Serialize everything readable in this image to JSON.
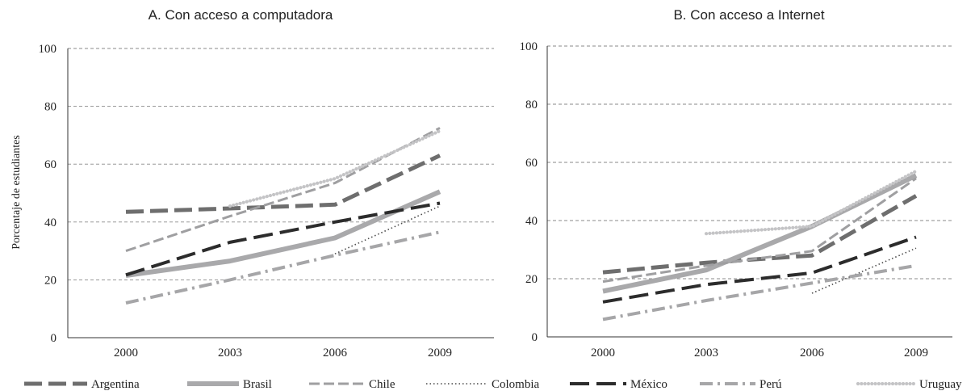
{
  "chart_data": [
    {
      "type": "line",
      "title": "A. Con acceso a computadora",
      "xlabel": "",
      "ylabel": "Porcentaje de estudiantes",
      "ylim": [
        0,
        100
      ],
      "yticks": [
        0,
        20,
        40,
        60,
        80,
        100
      ],
      "grid": true,
      "legend": "bottom",
      "categories": [
        "2000",
        "2003",
        "2006",
        "2009"
      ],
      "series": [
        {
          "name": "Argentina",
          "values": [
            43.5,
            44.7,
            46,
            63
          ]
        },
        {
          "name": "Brasil",
          "values": [
            21.5,
            26.5,
            34.5,
            50.5
          ]
        },
        {
          "name": "Chile",
          "values": [
            30,
            42,
            53.5,
            72.5
          ]
        },
        {
          "name": "Colombia",
          "values": [
            null,
            null,
            29,
            45.5
          ]
        },
        {
          "name": "México",
          "values": [
            21.7,
            33,
            40,
            46.5
          ]
        },
        {
          "name": "Perú",
          "values": [
            12,
            20,
            28.5,
            36.5
          ]
        },
        {
          "name": "Uruguay",
          "values": [
            null,
            45.5,
            55,
            71.5
          ]
        }
      ]
    },
    {
      "type": "line",
      "title": "B. Con acceso a Internet",
      "xlabel": "",
      "ylabel": "",
      "ylim": [
        0,
        100
      ],
      "yticks": [
        0,
        20,
        40,
        60,
        80,
        100
      ],
      "grid": true,
      "legend": "bottom",
      "categories": [
        "2000",
        "2003",
        "2006",
        "2009"
      ],
      "series": [
        {
          "name": "Argentina",
          "values": [
            22.2,
            25.5,
            28,
            48.5
          ]
        },
        {
          "name": "Brasil",
          "values": [
            15.7,
            23,
            38,
            55.5
          ]
        },
        {
          "name": "Chile",
          "values": [
            19,
            24.5,
            29.5,
            54.5
          ]
        },
        {
          "name": "Colombia",
          "values": [
            null,
            null,
            15,
            30.5
          ]
        },
        {
          "name": "México",
          "values": [
            12,
            18,
            22,
            34.3
          ]
        },
        {
          "name": "Perú",
          "values": [
            6,
            12.5,
            18.5,
            24.5
          ]
        },
        {
          "name": "Uruguay",
          "values": [
            null,
            35.5,
            38,
            57
          ]
        }
      ]
    }
  ],
  "series_styles": [
    {
      "name": "Argentina",
      "color": "#6e6e6e",
      "dash": "22 8",
      "width": 5
    },
    {
      "name": "Brasil",
      "color": "#a9a9ab",
      "dash": "",
      "width": 6
    },
    {
      "name": "Chile",
      "color": "#9f9fa1",
      "dash": "13 5",
      "width": 3
    },
    {
      "name": "Colombia",
      "color": "#4a4a4a",
      "dash": "1.5 3",
      "width": 1.6
    },
    {
      "name": "México",
      "color": "#2c2c2c",
      "dash": "24 9",
      "width": 4
    },
    {
      "name": "Perú",
      "color": "#a6a6a8",
      "dash": "16 6 3 6",
      "width": 4
    },
    {
      "name": "Uruguay",
      "color": "#c4c4c6",
      "dash": "0.1 4.2",
      "width": 4.2,
      "cap": "round"
    }
  ]
}
